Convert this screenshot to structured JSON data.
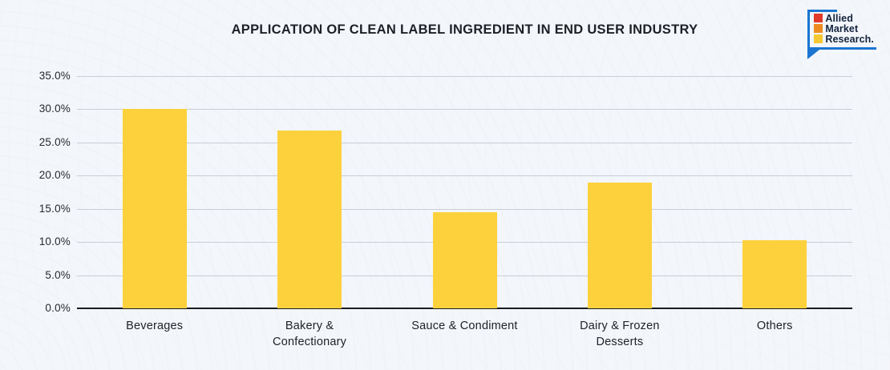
{
  "logo": {
    "lines": [
      "Allied",
      "Market",
      "Research."
    ],
    "square_colors": [
      "#e03a2b",
      "#ef8c21",
      "#f6c832"
    ],
    "bubble_color": "#1b75d2",
    "text_color": "#14243e"
  },
  "chart_data": {
    "type": "bar",
    "title": "APPLICATION OF CLEAN LABEL INGREDIENT IN END USER INDUSTRY",
    "categories": [
      "Beverages",
      "Bakery & Confectionary",
      "Sauce & Condiment",
      "Dairy & Frozen Desserts",
      "Others"
    ],
    "category_lines": [
      [
        "Beverages"
      ],
      [
        "Bakery &",
        "Confectionary"
      ],
      [
        "Sauce & Condiment"
      ],
      [
        "Dairy & Frozen",
        "Desserts"
      ],
      [
        "Others"
      ]
    ],
    "values": [
      30.1,
      26.8,
      14.5,
      18.9,
      10.3
    ],
    "xlabel": "",
    "ylabel": "",
    "ylim": [
      0,
      35
    ],
    "ytick_step": 5,
    "ytick_labels": [
      "0.0%",
      "5.0%",
      "10.0%",
      "15.0%",
      "20.0%",
      "25.0%",
      "30.0%",
      "35.0%"
    ],
    "bar_color": "#fdd13c",
    "grid": true,
    "gridline_color": "#c9ced6",
    "baseline_color": "#191c21",
    "legend": "none"
  }
}
